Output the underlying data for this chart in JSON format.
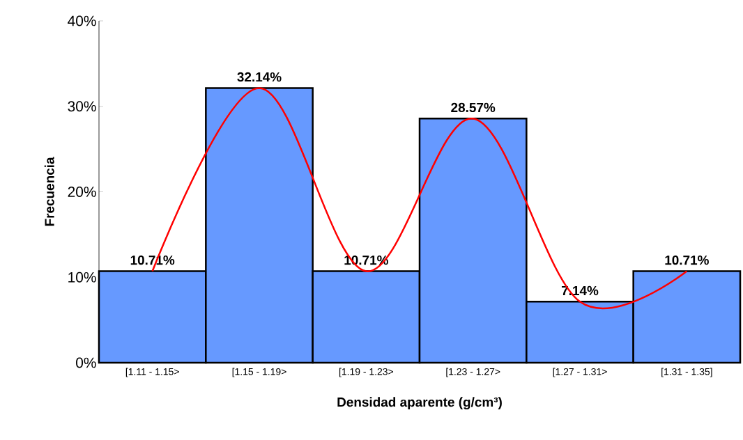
{
  "chart_data": {
    "type": "bar",
    "xlabel": "Densidad aparente (g/cm³)",
    "ylabel": "Frecuencia",
    "categories": [
      "[1.11 - 1.15>",
      "[1.15 - 1.19>",
      "[1.19 - 1.23>",
      "[1.23 - 1.27>",
      "[1.27 - 1.31>",
      "[1.31 - 1.35]"
    ],
    "series": [
      {
        "color": "#6699ff",
        "values": [
          10.71,
          32.14,
          10.71,
          28.57,
          7.14,
          10.71
        ],
        "value_labels": [
          "10.71%",
          "32.14%",
          "10.71%",
          "28.57%",
          "7.14%",
          "10.71%"
        ]
      },
      {
        "type": "line",
        "color": "#ff0000",
        "values": [
          10.71,
          32.14,
          10.71,
          28.57,
          7.14,
          10.71
        ]
      }
    ],
    "ylim": [
      0,
      40
    ],
    "yticks": [
      {
        "value": 0,
        "label": "0%"
      },
      {
        "value": 10,
        "label": "10%"
      },
      {
        "value": 20,
        "label": "20%"
      },
      {
        "value": 30,
        "label": "30%"
      },
      {
        "value": 40,
        "label": "40%"
      }
    ],
    "grid": false
  }
}
